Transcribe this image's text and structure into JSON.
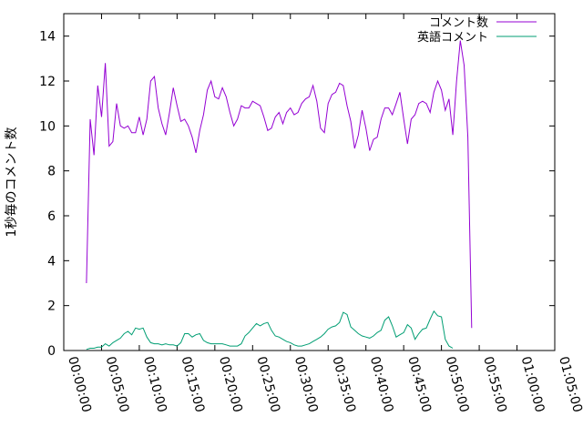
{
  "chart_data": {
    "type": "line",
    "ylabel": "1秒毎のコメント数",
    "xlim": [
      "00:00:00",
      "01:05:00"
    ],
    "ylim": [
      0,
      15
    ],
    "grid": false,
    "legend_position": "top-right",
    "x_ticks": [
      "00:00:00",
      "00:05:00",
      "00:10:00",
      "00:15:00",
      "00:20:00",
      "00:25:00",
      "00:30:00",
      "00:35:00",
      "00:40:00",
      "00:45:00",
      "00:50:00",
      "00:55:00",
      "01:00:00",
      "01:05:00"
    ],
    "y_ticks": [
      0,
      2,
      4,
      6,
      8,
      10,
      12,
      14
    ],
    "series": [
      {
        "name": "コメント数",
        "color": "#9400d3",
        "points": [
          [
            "00:03:00",
            3.0
          ],
          [
            "00:03:30",
            10.3
          ],
          [
            "00:04:00",
            8.7
          ],
          [
            "00:04:30",
            11.8
          ],
          [
            "00:05:00",
            10.4
          ],
          [
            "00:05:30",
            12.8
          ],
          [
            "00:06:00",
            9.1
          ],
          [
            "00:06:30",
            9.3
          ],
          [
            "00:07:00",
            11.0
          ],
          [
            "00:07:30",
            10.0
          ],
          [
            "00:08:00",
            9.9
          ],
          [
            "00:08:30",
            10.0
          ],
          [
            "00:09:00",
            9.7
          ],
          [
            "00:09:30",
            9.7
          ],
          [
            "00:10:00",
            10.4
          ],
          [
            "00:10:30",
            9.6
          ],
          [
            "00:11:00",
            10.3
          ],
          [
            "00:11:30",
            12.0
          ],
          [
            "00:12:00",
            12.2
          ],
          [
            "00:12:30",
            10.8
          ],
          [
            "00:13:00",
            10.1
          ],
          [
            "00:13:30",
            9.6
          ],
          [
            "00:14:00",
            10.6
          ],
          [
            "00:14:30",
            11.7
          ],
          [
            "00:15:00",
            10.9
          ],
          [
            "00:15:30",
            10.2
          ],
          [
            "00:16:00",
            10.3
          ],
          [
            "00:16:30",
            10.0
          ],
          [
            "00:17:00",
            9.5
          ],
          [
            "00:17:30",
            8.8
          ],
          [
            "00:18:00",
            9.8
          ],
          [
            "00:18:30",
            10.5
          ],
          [
            "00:19:00",
            11.6
          ],
          [
            "00:19:30",
            12.0
          ],
          [
            "00:20:00",
            11.3
          ],
          [
            "00:20:30",
            11.2
          ],
          [
            "00:21:00",
            11.7
          ],
          [
            "00:21:30",
            11.3
          ],
          [
            "00:22:00",
            10.6
          ],
          [
            "00:22:30",
            10.0
          ],
          [
            "00:23:00",
            10.3
          ],
          [
            "00:23:30",
            10.9
          ],
          [
            "00:24:00",
            10.8
          ],
          [
            "00:24:30",
            10.8
          ],
          [
            "00:25:00",
            11.1
          ],
          [
            "00:25:30",
            11.0
          ],
          [
            "00:26:00",
            10.9
          ],
          [
            "00:26:30",
            10.4
          ],
          [
            "00:27:00",
            9.8
          ],
          [
            "00:27:30",
            9.9
          ],
          [
            "00:28:00",
            10.4
          ],
          [
            "00:28:30",
            10.6
          ],
          [
            "00:29:00",
            10.1
          ],
          [
            "00:29:30",
            10.6
          ],
          [
            "00:30:00",
            10.8
          ],
          [
            "00:30:30",
            10.5
          ],
          [
            "00:31:00",
            10.6
          ],
          [
            "00:31:30",
            11.0
          ],
          [
            "00:32:00",
            11.2
          ],
          [
            "00:32:30",
            11.3
          ],
          [
            "00:33:00",
            11.8
          ],
          [
            "00:33:30",
            11.1
          ],
          [
            "00:34:00",
            9.9
          ],
          [
            "00:34:30",
            9.7
          ],
          [
            "00:35:00",
            11.0
          ],
          [
            "00:35:30",
            11.4
          ],
          [
            "00:36:00",
            11.5
          ],
          [
            "00:36:30",
            11.9
          ],
          [
            "00:37:00",
            11.8
          ],
          [
            "00:37:30",
            10.9
          ],
          [
            "00:38:00",
            10.2
          ],
          [
            "00:38:30",
            9.0
          ],
          [
            "00:39:00",
            9.6
          ],
          [
            "00:39:30",
            10.7
          ],
          [
            "00:40:00",
            9.9
          ],
          [
            "00:40:30",
            8.9
          ],
          [
            "00:41:00",
            9.4
          ],
          [
            "00:41:30",
            9.5
          ],
          [
            "00:42:00",
            10.3
          ],
          [
            "00:42:30",
            10.8
          ],
          [
            "00:43:00",
            10.8
          ],
          [
            "00:43:30",
            10.5
          ],
          [
            "00:44:00",
            11.0
          ],
          [
            "00:44:30",
            11.5
          ],
          [
            "00:45:00",
            10.3
          ],
          [
            "00:45:30",
            9.2
          ],
          [
            "00:46:00",
            10.3
          ],
          [
            "00:46:30",
            10.5
          ],
          [
            "00:47:00",
            11.0
          ],
          [
            "00:47:30",
            11.1
          ],
          [
            "00:48:00",
            11.0
          ],
          [
            "00:48:30",
            10.6
          ],
          [
            "00:49:00",
            11.5
          ],
          [
            "00:49:30",
            12.0
          ],
          [
            "00:50:00",
            11.6
          ],
          [
            "00:50:30",
            10.7
          ],
          [
            "00:51:00",
            11.2
          ],
          [
            "00:51:30",
            9.6
          ],
          [
            "00:52:00",
            12.0
          ],
          [
            "00:52:30",
            13.8
          ],
          [
            "00:53:00",
            12.7
          ],
          [
            "00:53:30",
            9.5
          ],
          [
            "00:54:00",
            1.0
          ]
        ]
      },
      {
        "name": "英語コメント",
        "color": "#009e73",
        "points": [
          [
            "00:03:00",
            0.05
          ],
          [
            "00:03:30",
            0.1
          ],
          [
            "00:04:00",
            0.1
          ],
          [
            "00:04:30",
            0.15
          ],
          [
            "00:05:00",
            0.15
          ],
          [
            "00:05:30",
            0.3
          ],
          [
            "00:06:00",
            0.2
          ],
          [
            "00:06:30",
            0.35
          ],
          [
            "00:07:00",
            0.45
          ],
          [
            "00:07:30",
            0.55
          ],
          [
            "00:08:00",
            0.75
          ],
          [
            "00:08:30",
            0.85
          ],
          [
            "00:09:00",
            0.7
          ],
          [
            "00:09:30",
            1.0
          ],
          [
            "00:10:00",
            0.95
          ],
          [
            "00:10:30",
            1.0
          ],
          [
            "00:11:00",
            0.6
          ],
          [
            "00:11:30",
            0.35
          ],
          [
            "00:12:00",
            0.3
          ],
          [
            "00:12:30",
            0.3
          ],
          [
            "00:13:00",
            0.25
          ],
          [
            "00:13:30",
            0.3
          ],
          [
            "00:14:00",
            0.25
          ],
          [
            "00:14:30",
            0.25
          ],
          [
            "00:15:00",
            0.2
          ],
          [
            "00:15:30",
            0.35
          ],
          [
            "00:16:00",
            0.75
          ],
          [
            "00:16:30",
            0.75
          ],
          [
            "00:17:00",
            0.6
          ],
          [
            "00:17:30",
            0.7
          ],
          [
            "00:18:00",
            0.75
          ],
          [
            "00:18:30",
            0.45
          ],
          [
            "00:19:00",
            0.35
          ],
          [
            "00:19:30",
            0.3
          ],
          [
            "00:20:00",
            0.3
          ],
          [
            "00:20:30",
            0.3
          ],
          [
            "00:21:00",
            0.3
          ],
          [
            "00:21:30",
            0.25
          ],
          [
            "00:22:00",
            0.2
          ],
          [
            "00:22:30",
            0.2
          ],
          [
            "00:23:00",
            0.2
          ],
          [
            "00:23:30",
            0.3
          ],
          [
            "00:24:00",
            0.65
          ],
          [
            "00:24:30",
            0.8
          ],
          [
            "00:25:00",
            1.0
          ],
          [
            "00:25:30",
            1.2
          ],
          [
            "00:26:00",
            1.1
          ],
          [
            "00:26:30",
            1.2
          ],
          [
            "00:27:00",
            1.25
          ],
          [
            "00:27:30",
            0.9
          ],
          [
            "00:28:00",
            0.65
          ],
          [
            "00:28:30",
            0.6
          ],
          [
            "00:29:00",
            0.5
          ],
          [
            "00:29:30",
            0.4
          ],
          [
            "00:30:00",
            0.35
          ],
          [
            "00:30:30",
            0.25
          ],
          [
            "00:31:00",
            0.2
          ],
          [
            "00:31:30",
            0.2
          ],
          [
            "00:32:00",
            0.25
          ],
          [
            "00:32:30",
            0.3
          ],
          [
            "00:33:00",
            0.4
          ],
          [
            "00:33:30",
            0.5
          ],
          [
            "00:34:00",
            0.6
          ],
          [
            "00:34:30",
            0.75
          ],
          [
            "00:35:00",
            0.95
          ],
          [
            "00:35:30",
            1.05
          ],
          [
            "00:36:00",
            1.1
          ],
          [
            "00:36:30",
            1.25
          ],
          [
            "00:37:00",
            1.7
          ],
          [
            "00:37:30",
            1.6
          ],
          [
            "00:38:00",
            1.05
          ],
          [
            "00:38:30",
            0.9
          ],
          [
            "00:39:00",
            0.75
          ],
          [
            "00:39:30",
            0.65
          ],
          [
            "00:40:00",
            0.6
          ],
          [
            "00:40:30",
            0.55
          ],
          [
            "00:41:00",
            0.65
          ],
          [
            "00:41:30",
            0.8
          ],
          [
            "00:42:00",
            0.9
          ],
          [
            "00:42:30",
            1.35
          ],
          [
            "00:43:00",
            1.5
          ],
          [
            "00:43:30",
            1.1
          ],
          [
            "00:44:00",
            0.6
          ],
          [
            "00:44:30",
            0.7
          ],
          [
            "00:45:00",
            0.8
          ],
          [
            "00:45:30",
            1.15
          ],
          [
            "00:46:00",
            1.0
          ],
          [
            "00:46:30",
            0.5
          ],
          [
            "00:47:00",
            0.75
          ],
          [
            "00:47:30",
            0.95
          ],
          [
            "00:48:00",
            1.0
          ],
          [
            "00:48:30",
            1.4
          ],
          [
            "00:49:00",
            1.75
          ],
          [
            "00:49:30",
            1.55
          ],
          [
            "00:50:00",
            1.5
          ],
          [
            "00:50:30",
            0.5
          ],
          [
            "00:51:00",
            0.2
          ],
          [
            "00:51:30",
            0.1
          ]
        ]
      }
    ]
  }
}
